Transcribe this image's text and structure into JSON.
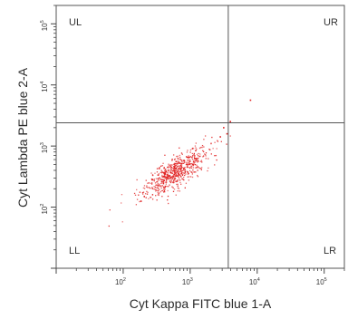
{
  "chart_data": {
    "type": "scatter",
    "xlabel": "Cyt Kappa FITC blue 1-A",
    "ylabel": "Cyt Lambda PE blue 2-A",
    "x_scale": "log",
    "y_scale": "log",
    "xlim": [
      10,
      200000
    ],
    "ylim": [
      10,
      200000
    ],
    "x_ticks": [
      {
        "base": "10",
        "exp": "2"
      },
      {
        "base": "10",
        "exp": "3"
      },
      {
        "base": "10",
        "exp": "4"
      },
      {
        "base": "10",
        "exp": "5"
      }
    ],
    "y_ticks": [
      {
        "base": "10",
        "exp": "2"
      },
      {
        "base": "10",
        "exp": "3"
      },
      {
        "base": "10",
        "exp": "4"
      },
      {
        "base": "10",
        "exp": "5"
      }
    ],
    "x_tick_values": [
      100,
      1000,
      10000,
      100000
    ],
    "y_tick_values": [
      100,
      1000,
      10000,
      100000
    ],
    "gate_x": 3700,
    "gate_y": 2400,
    "quadrants": {
      "UL": "UL",
      "UR": "UR",
      "LL": "LL",
      "LR": "LR"
    },
    "point_color": "#e02020",
    "grid": false,
    "population": {
      "description_units": "log10 data units",
      "center_x": 2.75,
      "center_y": 2.55,
      "major_spread": 0.32,
      "minor_spread": 0.1,
      "angle_deg": 38,
      "count": 650,
      "outliers": [
        [
          3.9,
          3.75
        ],
        [
          3.6,
          3.4
        ],
        [
          3.5,
          3.3
        ],
        [
          3.55,
          3.2
        ],
        [
          3.45,
          3.15
        ]
      ]
    }
  }
}
